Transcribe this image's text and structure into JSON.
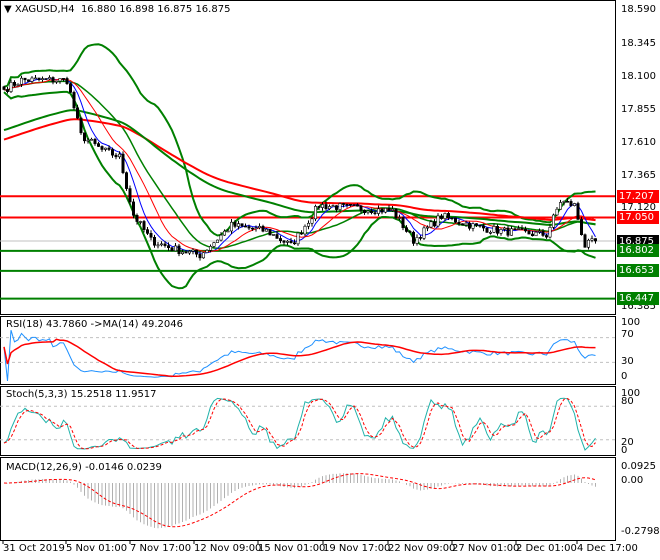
{
  "header": {
    "symbol": "XAGUSD,H4",
    "ohlc": "16.880 16.898 16.875 16.875"
  },
  "price_axis": [
    "18.590",
    "18.345",
    "18.100",
    "17.855",
    "17.610",
    "17.365",
    "17.120",
    "16.385"
  ],
  "levels": [
    {
      "value": "17.207",
      "color": "#ff0000"
    },
    {
      "value": "17.050",
      "color": "#ff0000"
    },
    {
      "value": "16.802",
      "color": "#008000"
    },
    {
      "value": "16.653",
      "color": "#008000"
    },
    {
      "value": "16.447",
      "color": "#008000"
    }
  ],
  "current_price": "16.875",
  "rsi": {
    "title": "RSI(18) 43.7860  ->MA(14) 49.2046",
    "axis": [
      "100",
      "70",
      "30",
      "0"
    ]
  },
  "stoch": {
    "title": "Stoch(5,3,3) 15.2518 11.9517",
    "axis": [
      "100",
      "80",
      "20",
      "0"
    ]
  },
  "macd": {
    "title": "MACD(12,26,9) -0.0146 0.0239",
    "axis": [
      "0.0925",
      "0.00",
      "-0.2798"
    ]
  },
  "time_axis": [
    "31 Oct 2019",
    "5 Nov 01:00",
    "7 Nov 17:00",
    "12 Nov 09:00",
    "15 Nov 01:00",
    "19 Nov 17:00",
    "22 Nov 09:00",
    "27 Nov 01:00",
    "2 Dec 01:00",
    "4 Dec 17:00"
  ],
  "chart_data": {
    "type": "candlestick",
    "keypoints": [
      [
        0,
        18.0
      ],
      [
        5,
        18.07
      ],
      [
        18,
        18.07
      ],
      [
        22,
        17.66
      ],
      [
        28,
        17.55
      ],
      [
        33,
        17.5
      ],
      [
        37,
        17.07
      ],
      [
        42,
        16.88
      ],
      [
        48,
        16.82
      ],
      [
        56,
        16.77
      ],
      [
        65,
        16.99
      ],
      [
        75,
        16.95
      ],
      [
        82,
        16.84
      ],
      [
        90,
        17.14
      ],
      [
        100,
        17.12
      ],
      [
        111,
        17.1
      ],
      [
        117,
        16.88
      ],
      [
        125,
        17.06
      ],
      [
        135,
        16.98
      ],
      [
        142,
        16.95
      ],
      [
        155,
        16.92
      ],
      [
        159,
        17.17
      ],
      [
        163,
        17.14
      ],
      [
        166,
        16.84
      ],
      [
        169,
        16.875
      ]
    ],
    "colors": {
      "bollinger": "#008000",
      "ma_long": "#ff0000",
      "ma_mid": "#008000",
      "ma_fast": "#0000ff",
      "ma_slow": "#ff0000"
    }
  }
}
